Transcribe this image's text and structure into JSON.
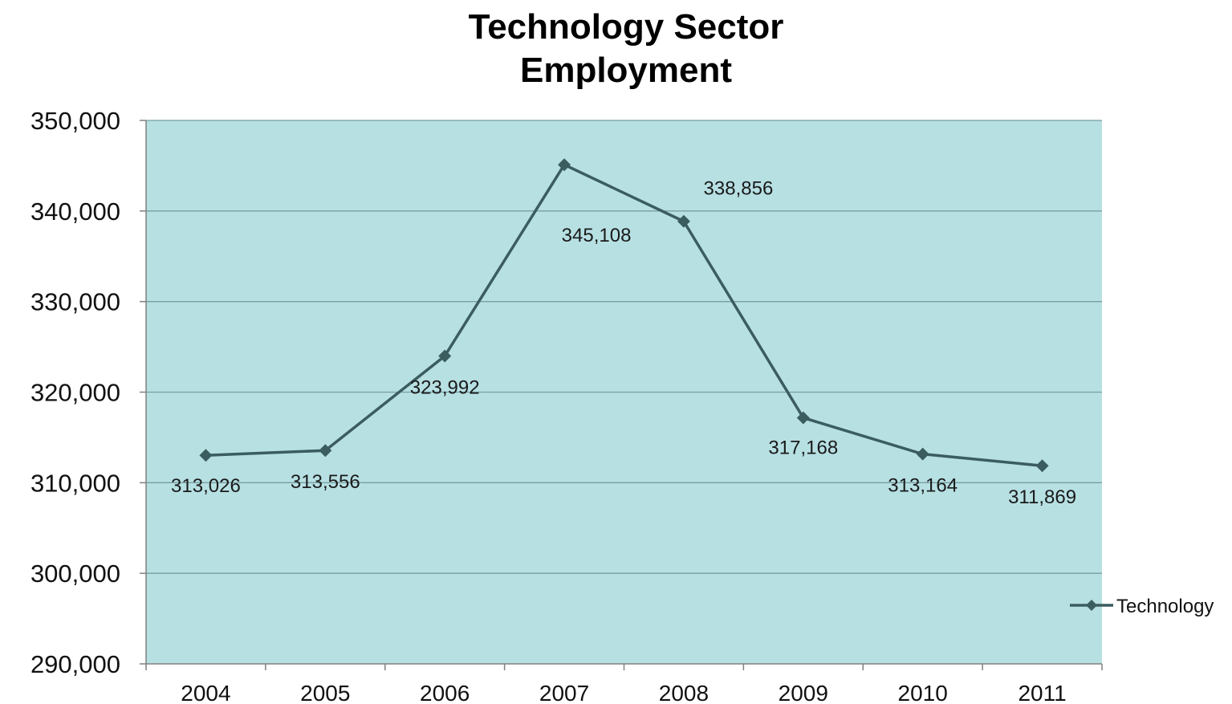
{
  "chart_data": {
    "type": "line",
    "title": [
      "Technology Sector",
      "Employment"
    ],
    "xlabel": "",
    "ylabel": "",
    "categories": [
      "2004",
      "2005",
      "2006",
      "2007",
      "2008",
      "2009",
      "2010",
      "2011"
    ],
    "series": [
      {
        "name": "Technology",
        "values": [
          313026,
          313556,
          323992,
          345108,
          338856,
          317168,
          313164,
          311869
        ],
        "data_labels": [
          "313,026",
          "313,556",
          "323,992",
          "345,108",
          "338,856",
          "317,168",
          "313,164",
          "311,869"
        ]
      }
    ],
    "ylim": [
      290000,
      350000
    ],
    "yticks": [
      290000,
      300000,
      310000,
      320000,
      330000,
      340000,
      350000
    ],
    "ytick_labels": [
      "290,000",
      "300,000",
      "310,000",
      "320,000",
      "330,000",
      "340,000",
      "350,000"
    ],
    "grid": true,
    "legend": "right",
    "colors": {
      "plot_background": "#b7e0e3",
      "gridline": "#7a9ea2",
      "line": "#3b5d60",
      "axis": "#808080"
    }
  }
}
